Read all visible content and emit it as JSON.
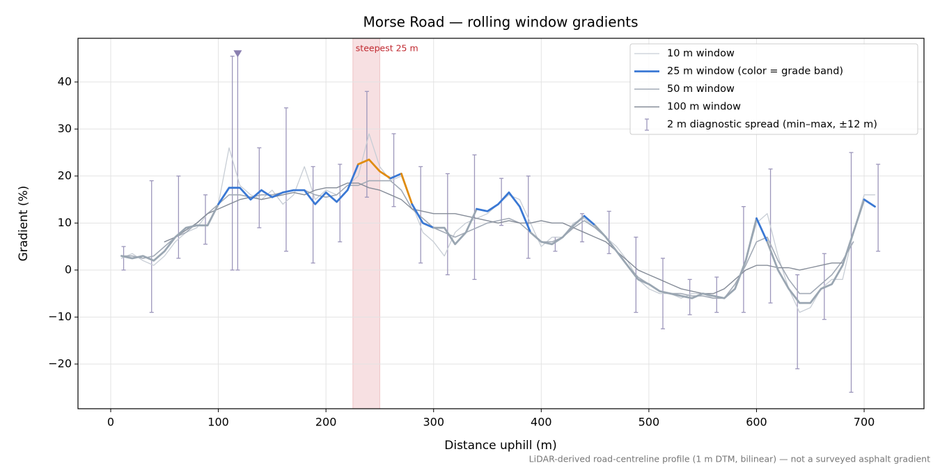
{
  "chart_data": {
    "type": "line",
    "title": "Morse Road — rolling window gradients",
    "x_label": "Distance uphill (m)",
    "y_label": "Gradient (%)",
    "footnote": "LiDAR-derived road-centreline profile (1 m DTM, bilinear) — not a surveyed asphalt gradient",
    "xlim": [
      -30.4,
      755.6
    ],
    "ylim": [
      -29.5,
      49.3
    ],
    "xticks": [
      0,
      100,
      200,
      300,
      400,
      500,
      600,
      700
    ],
    "yticks": [
      {
        "value": -20,
        "label": "−20"
      },
      {
        "value": -10,
        "label": "−10"
      },
      0,
      10,
      20,
      30,
      40
    ],
    "grid": true,
    "legend": "upper right",
    "span": {
      "label": "steepest 25 m",
      "x": [
        225,
        250
      ],
      "color": "#e8a6ac"
    },
    "x": [
      10,
      20,
      30,
      40,
      50,
      60,
      70,
      80,
      90,
      100,
      110,
      120,
      130,
      140,
      150,
      160,
      170,
      180,
      190,
      200,
      210,
      220,
      230,
      240,
      250,
      260,
      270,
      280,
      290,
      300,
      310,
      320,
      330,
      340,
      350,
      360,
      370,
      380,
      390,
      400,
      410,
      420,
      430,
      440,
      450,
      460,
      470,
      480,
      490,
      500,
      510,
      520,
      530,
      540,
      550,
      560,
      570,
      580,
      590,
      600,
      610,
      620,
      630,
      640,
      650,
      660,
      670,
      680,
      690,
      700,
      710
    ],
    "series": [
      {
        "name": "10 m window",
        "color": "#c7cdd5",
        "width": 1.3,
        "values": [
          2.5,
          3.5,
          2,
          1,
          3,
          6,
          8,
          9,
          12,
          14,
          26,
          18,
          16,
          15,
          17,
          14,
          16,
          22,
          15,
          17,
          16,
          18,
          20,
          29,
          22,
          19,
          20,
          14,
          8,
          6,
          3,
          8,
          10,
          11,
          12,
          14,
          16,
          15,
          10,
          5,
          7,
          7,
          10,
          11,
          9,
          7,
          5,
          2,
          -2,
          -4,
          -5,
          -5,
          -6,
          -5,
          -5,
          -6,
          -6,
          -4,
          2,
          10,
          12,
          3,
          -4,
          -9,
          -8,
          -4,
          -2,
          -2,
          8,
          16,
          16
        ]
      },
      {
        "name": "50 m window",
        "color": "#a2aab6",
        "width": 1.6,
        "values": [
          3,
          3,
          2.5,
          3,
          5,
          7,
          8,
          10,
          12,
          14,
          16,
          16,
          15.5,
          16,
          16,
          16.5,
          17,
          17,
          16,
          15.5,
          16,
          18,
          18,
          19,
          19,
          19,
          17,
          13,
          11,
          9,
          8,
          7,
          8,
          9,
          10,
          10.5,
          11,
          10,
          8,
          6,
          6,
          7,
          9,
          10.5,
          9,
          7,
          4,
          1,
          -1.5,
          -3,
          -4.5,
          -5,
          -5,
          -5.5,
          -5.5,
          -6,
          -6,
          -3,
          1,
          6,
          7,
          2,
          -2,
          -5,
          -5,
          -3,
          -1,
          2,
          6,
          null,
          null
        ]
      },
      {
        "name": "100 m window",
        "color": "#858c98",
        "width": 1.4,
        "values": [
          null,
          null,
          null,
          null,
          6,
          7,
          8.5,
          10,
          12,
          13,
          14,
          15,
          15.5,
          15,
          15.5,
          16,
          16.5,
          16,
          17,
          17.5,
          17.5,
          18.5,
          18.5,
          17.5,
          17,
          16,
          15,
          13,
          12.5,
          12,
          12,
          12,
          11.5,
          11,
          10.5,
          10,
          10.5,
          10,
          10,
          10.5,
          10,
          10,
          9,
          8,
          7,
          6,
          4,
          2,
          0,
          -1,
          -2,
          -3,
          -4,
          -4.5,
          -5,
          -5,
          -4,
          -2,
          0,
          1,
          1,
          0.5,
          0.5,
          0,
          0.5,
          1,
          1.5,
          1.5,
          null,
          null,
          null
        ]
      },
      {
        "name": "25 m window (color = grade band)",
        "color": "#3a78d4",
        "width": 2.8,
        "values": [
          3,
          2.5,
          3,
          2,
          4,
          7,
          9,
          9.5,
          9.5,
          14,
          17.5,
          17.5,
          15,
          17,
          15.5,
          16.5,
          17,
          17,
          14,
          16.5,
          14.5,
          17,
          22.5,
          23.5,
          21,
          19.5,
          20.5,
          14,
          10,
          9,
          9,
          5.5,
          8,
          13,
          12.5,
          14,
          16.5,
          13.5,
          8,
          6,
          5.5,
          7,
          9.5,
          11.5,
          9.5,
          7,
          4,
          1,
          -2,
          -3,
          -4.5,
          -5,
          -5.5,
          -6,
          -5,
          -5.5,
          -6,
          -4,
          2,
          11,
          6,
          0,
          -4,
          -7,
          -7,
          -4,
          -3,
          1,
          8,
          15,
          13.5
        ],
        "colors": [
          "#9aa6b2",
          "#9aa6b2",
          "#9aa6b2",
          "#9aa6b2",
          "#9aa6b2",
          "#9aa6b2",
          "#9aa6b2",
          "#9aa6b2",
          "#9aa6b2",
          "#3a78d4",
          "#3a78d4",
          "#3a78d4",
          "#3a78d4",
          "#3a78d4",
          "#3a78d4",
          "#3a78d4",
          "#3a78d4",
          "#3a78d4",
          "#3a78d4",
          "#3a78d4",
          "#3a78d4",
          "#3a78d4",
          "#e08c10",
          "#e08c10",
          "#e08c10",
          "#3a78d4",
          "#e08c10",
          "#3a78d4",
          "#3a78d4",
          "#9aa6b2",
          "#9aa6b2",
          "#9aa6b2",
          "#9aa6b2",
          "#3a78d4",
          "#3a78d4",
          "#3a78d4",
          "#3a78d4",
          "#3a78d4",
          "#9aa6b2",
          "#9aa6b2",
          "#9aa6b2",
          "#9aa6b2",
          "#9aa6b2",
          "#3a78d4",
          "#9aa6b2",
          "#9aa6b2",
          "#9aa6b2",
          "#9aa6b2",
          "#9aa6b2",
          "#9aa6b2",
          "#9aa6b2",
          "#9aa6b2",
          "#9aa6b2",
          "#9aa6b2",
          "#9aa6b2",
          "#9aa6b2",
          "#9aa6b2",
          "#9aa6b2",
          "#9aa6b2",
          "#3a78d4",
          "#9aa6b2",
          "#9aa6b2",
          "#9aa6b2",
          "#9aa6b2",
          "#9aa6b2",
          "#9aa6b2",
          "#9aa6b2",
          "#9aa6b2",
          "#9aa6b2",
          "#3a78d4",
          "#3a78d4"
        ]
      }
    ],
    "error_bars": {
      "name": "2 m diagnostic spread (min–max, ±12 m)",
      "color": "#9c96bb",
      "x": [
        12,
        38,
        63,
        88,
        113,
        118,
        138,
        163,
        188,
        213,
        238,
        263,
        288,
        313,
        338,
        363,
        388,
        413,
        438,
        463,
        488,
        513,
        538,
        563,
        588,
        613,
        638,
        663,
        688,
        713
      ],
      "low": [
        0,
        -9,
        2.5,
        5.5,
        0,
        0,
        9,
        4,
        1.5,
        6,
        15.5,
        13.5,
        1.5,
        -1,
        -2,
        9.5,
        2.5,
        4,
        6,
        3.5,
        -9,
        -12.5,
        -9.5,
        -9,
        -9,
        -7,
        -21,
        -10.5,
        -26,
        4
      ],
      "high": [
        5,
        19,
        20,
        16,
        45.5,
        46,
        26,
        34.5,
        22,
        22.5,
        38,
        29,
        22,
        20.5,
        24.5,
        19.5,
        20,
        7,
        12,
        12.5,
        7,
        2.5,
        -2,
        -1.5,
        13.5,
        21.5,
        -1,
        3.5,
        25,
        22.5
      ]
    },
    "peak_marker": {
      "x": 118,
      "y": 46,
      "color": "#8a7fb0"
    }
  }
}
